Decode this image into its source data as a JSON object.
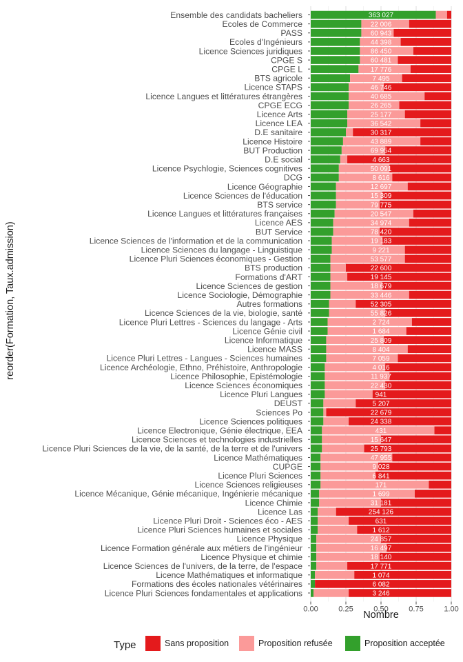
{
  "chart_data": {
    "type": "bar",
    "orientation": "horizontal",
    "stacked": true,
    "xlabel": "Nombre",
    "ylabel": "reorder(Formation, Taux.admission)",
    "xlim": [
      0,
      1
    ],
    "xticks": [
      "0.00",
      "0.25",
      "0.50",
      "0.75",
      "1.00"
    ],
    "grid": true,
    "legend": {
      "title": "Type",
      "position": "bottom"
    },
    "series": [
      {
        "name": "Sans proposition",
        "color": "#e41a1c",
        "key": "sans"
      },
      {
        "name": "Proposition refusée",
        "color": "#fb9a99",
        "key": "refusee"
      },
      {
        "name": "Proposition acceptée",
        "color": "#33a02c",
        "key": "acceptee"
      }
    ],
    "rows": [
      {
        "formation": "Ensemble des candidats bacheliers",
        "acceptee": 0.89,
        "refusee": 0.08,
        "count": "363 027"
      },
      {
        "formation": "Ecoles de Commerce",
        "acceptee": 0.36,
        "refusee": 0.34,
        "count": "22 006"
      },
      {
        "formation": "PASS",
        "acceptee": 0.36,
        "refusee": 0.23,
        "count": "60 943"
      },
      {
        "formation": "Ecoles d'Ingénieurs",
        "acceptee": 0.35,
        "refusee": 0.29,
        "count": "44 398"
      },
      {
        "formation": "Licence Sciences juridiques",
        "acceptee": 0.35,
        "refusee": 0.38,
        "count": "86 450"
      },
      {
        "formation": "CPGE S",
        "acceptee": 0.35,
        "refusee": 0.27,
        "count": "60 481"
      },
      {
        "formation": "CPGE L",
        "acceptee": 0.34,
        "refusee": 0.37,
        "count": "17 776"
      },
      {
        "formation": "BTS agricole",
        "acceptee": 0.28,
        "refusee": 0.37,
        "count": "7 495"
      },
      {
        "formation": "Licence STAPS",
        "acceptee": 0.27,
        "refusee": 0.25,
        "count": "46 746"
      },
      {
        "formation": "Licence Langues et littératures étrangères",
        "acceptee": 0.27,
        "refusee": 0.54,
        "count": "40 685"
      },
      {
        "formation": "CPGE ECG",
        "acceptee": 0.27,
        "refusee": 0.36,
        "count": "26 265"
      },
      {
        "formation": "Licence Arts",
        "acceptee": 0.26,
        "refusee": 0.41,
        "count": "25 177"
      },
      {
        "formation": "Licence LEA",
        "acceptee": 0.26,
        "refusee": 0.52,
        "count": "36 542"
      },
      {
        "formation": "D.E sanitaire",
        "acceptee": 0.25,
        "refusee": 0.05,
        "count": "30 317"
      },
      {
        "formation": "Licence Histoire",
        "acceptee": 0.23,
        "refusee": 0.55,
        "count": "43 889"
      },
      {
        "formation": "BUT Production",
        "acceptee": 0.22,
        "refusee": 0.31,
        "count": "69 954"
      },
      {
        "formation": "D.E social",
        "acceptee": 0.21,
        "refusee": 0.05,
        "count": "4 663"
      },
      {
        "formation": "Licence Psychlogie, Sciences cognitives",
        "acceptee": 0.2,
        "refusee": 0.36,
        "count": "50 091"
      },
      {
        "formation": "DCG",
        "acceptee": 0.2,
        "refusee": 0.38,
        "count": "8 616"
      },
      {
        "formation": "Licence Géographie",
        "acceptee": 0.18,
        "refusee": 0.51,
        "count": "12 697"
      },
      {
        "formation": "Licence Sciences de l'éducation",
        "acceptee": 0.18,
        "refusee": 0.33,
        "count": "15 309"
      },
      {
        "formation": "BTS service",
        "acceptee": 0.18,
        "refusee": 0.31,
        "count": "79 775"
      },
      {
        "formation": "Licence Langues et littératures françaises",
        "acceptee": 0.17,
        "refusee": 0.56,
        "count": "20 547"
      },
      {
        "formation": "Licence AES",
        "acceptee": 0.16,
        "refusee": 0.54,
        "count": "34 974"
      },
      {
        "formation": "BUT Service",
        "acceptee": 0.16,
        "refusee": 0.33,
        "count": "78 420"
      },
      {
        "formation": "Licence Sciences de l'information et de la communication",
        "acceptee": 0.15,
        "refusee": 0.36,
        "count": "19 183"
      },
      {
        "formation": "Licence Sciences du langage - Linguistique",
        "acceptee": 0.15,
        "refusee": 0.52,
        "count": "9 221"
      },
      {
        "formation": "Licence Pluri Sciences économiques - Gestion",
        "acceptee": 0.14,
        "refusee": 0.53,
        "count": "53 577"
      },
      {
        "formation": "BTS production",
        "acceptee": 0.14,
        "refusee": 0.11,
        "count": "22 600"
      },
      {
        "formation": "Formations d'ART",
        "acceptee": 0.14,
        "refusee": 0.12,
        "count": "19 145"
      },
      {
        "formation": "Licence Sciences de gestion",
        "acceptee": 0.14,
        "refusee": 0.37,
        "count": "18 679"
      },
      {
        "formation": "Licence Sociologie, Démographie",
        "acceptee": 0.14,
        "refusee": 0.56,
        "count": "33 446"
      },
      {
        "formation": "Autres formations",
        "acceptee": 0.13,
        "refusee": 0.19,
        "count": "52 305"
      },
      {
        "formation": "Licence Sciences de la vie, biologie, santé",
        "acceptee": 0.13,
        "refusee": 0.4,
        "count": "55 826"
      },
      {
        "formation": "Licence Pluri Lettres - Sciences du langage - Arts",
        "acceptee": 0.12,
        "refusee": 0.6,
        "count": "2 724"
      },
      {
        "formation": "Licence Génie civil",
        "acceptee": 0.12,
        "refusee": 0.56,
        "count": "1 684"
      },
      {
        "formation": "Licence Informatique",
        "acceptee": 0.11,
        "refusee": 0.41,
        "count": "25 809"
      },
      {
        "formation": "Licence MASS",
        "acceptee": 0.11,
        "refusee": 0.58,
        "count": "8 404"
      },
      {
        "formation": "Licence Pluri Lettres - Langues - Sciences humaines",
        "acceptee": 0.11,
        "refusee": 0.51,
        "count": "7 059"
      },
      {
        "formation": "Licence Archéologie, Ethno, Préhistoire, Anthropologie",
        "acceptee": 0.1,
        "refusee": 0.43,
        "count": "4 016"
      },
      {
        "formation": "Licence Philosophie, Epistémologie",
        "acceptee": 0.1,
        "refusee": 0.46,
        "count": "11 937"
      },
      {
        "formation": "Licence Sciences économiques",
        "acceptee": 0.1,
        "refusee": 0.43,
        "count": "22 430"
      },
      {
        "formation": "Licence Pluri Langues",
        "acceptee": 0.1,
        "refusee": 0.34,
        "count": "941"
      },
      {
        "formation": "DEUST",
        "acceptee": 0.09,
        "refusee": 0.23,
        "count": "5 207"
      },
      {
        "formation": "Sciences Po",
        "acceptee": 0.09,
        "refusee": 0.02,
        "count": "22 679"
      },
      {
        "formation": "Licence Sciences politiques",
        "acceptee": 0.09,
        "refusee": 0.18,
        "count": "24 338"
      },
      {
        "formation": "Licence Electronique, Génie électrique, EEA",
        "acceptee": 0.08,
        "refusee": 0.8,
        "count": "431"
      },
      {
        "formation": "Licence Sciences et technologies industrielles",
        "acceptee": 0.08,
        "refusee": 0.42,
        "count": "15 647"
      },
      {
        "formation": "Licence Pluri Sciences de la vie, de la santé, de la terre et de l'univers",
        "acceptee": 0.08,
        "refusee": 0.3,
        "count": "25 793"
      },
      {
        "formation": "Licence Mathématiques",
        "acceptee": 0.07,
        "refusee": 0.51,
        "count": "47 955"
      },
      {
        "formation": "CUPGE",
        "acceptee": 0.07,
        "refusee": 0.41,
        "count": "9 028"
      },
      {
        "formation": "Licence Pluri Sciences",
        "acceptee": 0.07,
        "refusee": 0.39,
        "count": "6 841"
      },
      {
        "formation": "Licence Sciences religieuses",
        "acceptee": 0.07,
        "refusee": 0.77,
        "count": "171"
      },
      {
        "formation": "Licence Mécanique, Génie mécanique, Ingénierie mécanique",
        "acceptee": 0.06,
        "refusee": 0.68,
        "count": "1 699"
      },
      {
        "formation": "Licence Chimie",
        "acceptee": 0.06,
        "refusee": 0.44,
        "count": "31 181"
      },
      {
        "formation": "Licence Las",
        "acceptee": 0.05,
        "refusee": 0.13,
        "count": "254 126"
      },
      {
        "formation": "Licence Pluri Droit - Sciences éco - AES",
        "acceptee": 0.05,
        "refusee": 0.22,
        "count": "631"
      },
      {
        "formation": "Licence Pluri Sciences humaines et sociales",
        "acceptee": 0.05,
        "refusee": 0.28,
        "count": "1 612"
      },
      {
        "formation": "Licence Physique",
        "acceptee": 0.04,
        "refusee": 0.46,
        "count": "24 857"
      },
      {
        "formation": "Licence Formation générale aux métiers de l'ingénieur",
        "acceptee": 0.04,
        "refusee": 0.5,
        "count": "16 497"
      },
      {
        "formation": "Licence Physique et chimie",
        "acceptee": 0.04,
        "refusee": 0.45,
        "count": "18 140"
      },
      {
        "formation": "Licence Sciences de l'univers, de la terre, de l'espace",
        "acceptee": 0.04,
        "refusee": 0.22,
        "count": "17 771"
      },
      {
        "formation": "Licence Mathématiques et informatique",
        "acceptee": 0.03,
        "refusee": 0.28,
        "count": "1 074"
      },
      {
        "formation": "Formations des écoles nationales vétérinaires",
        "acceptee": 0.03,
        "refusee": 0.0,
        "count": "6 082"
      },
      {
        "formation": "Licence Pluri Sciences fondamentales et applications",
        "acceptee": 0.02,
        "refusee": 0.25,
        "count": "3 246"
      }
    ]
  }
}
